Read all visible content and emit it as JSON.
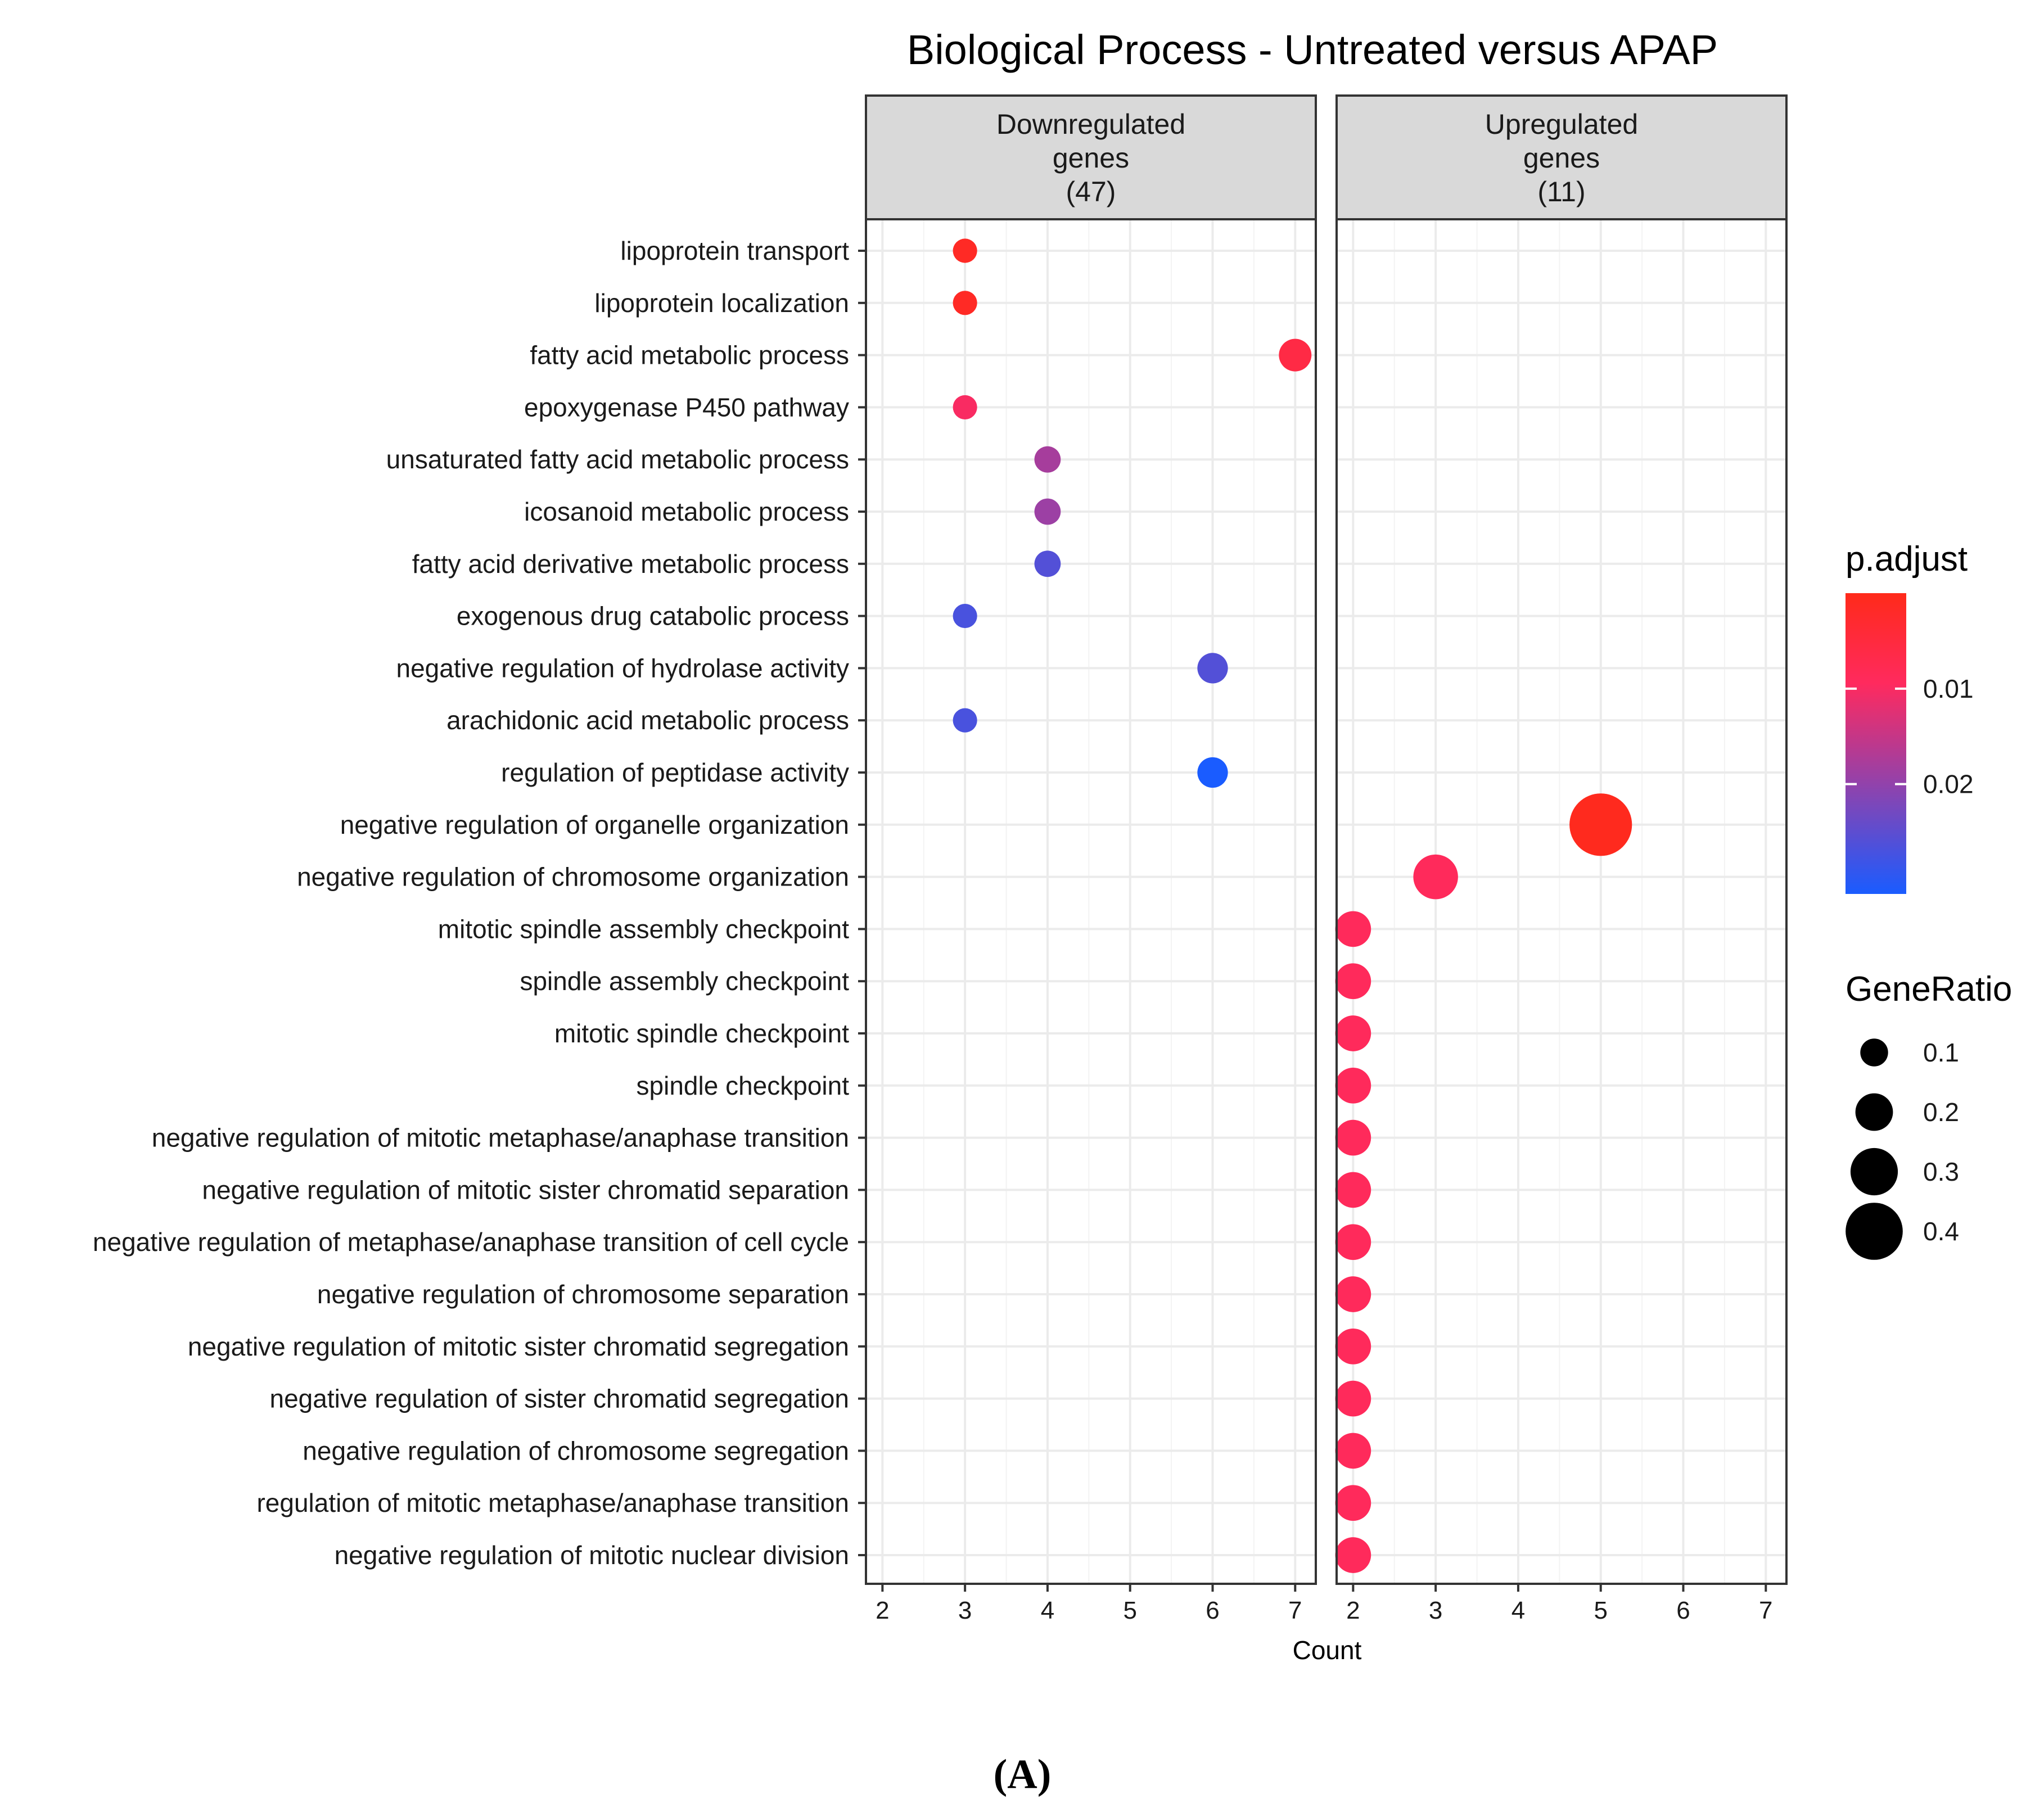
{
  "chart_data": {
    "type": "scatter",
    "title": "Biological Process - Untreated versus APAP",
    "xlabel": "Count",
    "caption": "(A)",
    "x_ticks": [
      2,
      3,
      4,
      5,
      6,
      7
    ],
    "xlim": [
      1.8,
      7.25
    ],
    "categories": [
      "lipoprotein transport",
      "lipoprotein localization",
      "fatty acid metabolic process",
      "epoxygenase P450 pathway",
      "unsaturated fatty acid metabolic process",
      "icosanoid metabolic process",
      "fatty acid derivative metabolic process",
      "exogenous drug catabolic process",
      "negative regulation of hydrolase activity",
      "arachidonic acid metabolic process",
      "regulation of peptidase activity",
      "negative regulation of organelle organization",
      "negative regulation of chromosome organization",
      "mitotic spindle assembly checkpoint",
      "spindle assembly checkpoint",
      "mitotic spindle checkpoint",
      "spindle checkpoint",
      "negative regulation of mitotic metaphase/anaphase transition",
      "negative regulation of mitotic sister chromatid separation",
      "negative regulation of metaphase/anaphase transition of cell cycle",
      "negative regulation of chromosome separation",
      "negative regulation of mitotic sister chromatid segregation",
      "negative regulation of sister chromatid segregation",
      "negative regulation of chromosome segregation",
      "regulation of mitotic metaphase/anaphase transition",
      "negative regulation of mitotic nuclear division"
    ],
    "panels": [
      {
        "label_lines": [
          "Downregulated",
          "genes",
          "(47)"
        ],
        "points": [
          {
            "term": "lipoprotein transport",
            "count": 3,
            "gene_ratio": 0.064,
            "p_adjust": 0.0015
          },
          {
            "term": "lipoprotein localization",
            "count": 3,
            "gene_ratio": 0.064,
            "p_adjust": 0.0015
          },
          {
            "term": "fatty acid metabolic process",
            "count": 7,
            "gene_ratio": 0.149,
            "p_adjust": 0.006
          },
          {
            "term": "epoxygenase P450 pathway",
            "count": 3,
            "gene_ratio": 0.064,
            "p_adjust": 0.01
          },
          {
            "term": "unsaturated fatty acid metabolic process",
            "count": 4,
            "gene_ratio": 0.085,
            "p_adjust": 0.018
          },
          {
            "term": "icosanoid metabolic process",
            "count": 4,
            "gene_ratio": 0.085,
            "p_adjust": 0.019
          },
          {
            "term": "fatty acid derivative metabolic process",
            "count": 4,
            "gene_ratio": 0.085,
            "p_adjust": 0.026
          },
          {
            "term": "exogenous drug catabolic process",
            "count": 3,
            "gene_ratio": 0.064,
            "p_adjust": 0.027
          },
          {
            "term": "negative regulation of hydrolase activity",
            "count": 6,
            "gene_ratio": 0.128,
            "p_adjust": 0.026
          },
          {
            "term": "arachidonic acid metabolic process",
            "count": 3,
            "gene_ratio": 0.064,
            "p_adjust": 0.027
          },
          {
            "term": "regulation of peptidase activity",
            "count": 6,
            "gene_ratio": 0.128,
            "p_adjust": 0.0315
          }
        ]
      },
      {
        "label_lines": [
          "Upregulated",
          "genes",
          "(11)"
        ],
        "points": [
          {
            "term": "negative regulation of organelle organization",
            "count": 5,
            "gene_ratio": 0.455,
            "p_adjust": 0.0005
          },
          {
            "term": "negative regulation of chromosome organization",
            "count": 3,
            "gene_ratio": 0.273,
            "p_adjust": 0.009
          },
          {
            "term": "mitotic spindle assembly checkpoint",
            "count": 2,
            "gene_ratio": 0.182,
            "p_adjust": 0.009
          },
          {
            "term": "spindle assembly checkpoint",
            "count": 2,
            "gene_ratio": 0.182,
            "p_adjust": 0.009
          },
          {
            "term": "mitotic spindle checkpoint",
            "count": 2,
            "gene_ratio": 0.182,
            "p_adjust": 0.009
          },
          {
            "term": "spindle checkpoint",
            "count": 2,
            "gene_ratio": 0.182,
            "p_adjust": 0.009
          },
          {
            "term": "negative regulation of mitotic metaphase/anaphase transition",
            "count": 2,
            "gene_ratio": 0.182,
            "p_adjust": 0.009
          },
          {
            "term": "negative regulation of mitotic sister chromatid separation",
            "count": 2,
            "gene_ratio": 0.182,
            "p_adjust": 0.009
          },
          {
            "term": "negative regulation of metaphase/anaphase transition of cell cycle",
            "count": 2,
            "gene_ratio": 0.182,
            "p_adjust": 0.009
          },
          {
            "term": "negative regulation of chromosome separation",
            "count": 2,
            "gene_ratio": 0.182,
            "p_adjust": 0.009
          },
          {
            "term": "negative regulation of mitotic sister chromatid segregation",
            "count": 2,
            "gene_ratio": 0.182,
            "p_adjust": 0.009
          },
          {
            "term": "negative regulation of sister chromatid segregation",
            "count": 2,
            "gene_ratio": 0.182,
            "p_adjust": 0.009
          },
          {
            "term": "negative regulation of chromosome segregation",
            "count": 2,
            "gene_ratio": 0.182,
            "p_adjust": 0.009
          },
          {
            "term": "regulation of mitotic metaphase/anaphase transition",
            "count": 2,
            "gene_ratio": 0.182,
            "p_adjust": 0.009
          },
          {
            "term": "negative regulation of mitotic nuclear division",
            "count": 2,
            "gene_ratio": 0.182,
            "p_adjust": 0.009
          }
        ]
      }
    ],
    "color_legend": {
      "title": "p.adjust",
      "range": [
        0,
        0.0315
      ],
      "ticks": [
        {
          "value": 0.01,
          "label": "0.01"
        },
        {
          "value": 0.02,
          "label": "0.02"
        }
      ],
      "low_color": "#ff2a1a",
      "mid_color": "#ff2a5e",
      "high_color": "#1a5cff"
    },
    "size_legend": {
      "title": "GeneRatio",
      "entries": [
        {
          "value": 0.1,
          "label": "0.1"
        },
        {
          "value": 0.2,
          "label": "0.2"
        },
        {
          "value": 0.3,
          "label": "0.3"
        },
        {
          "value": 0.4,
          "label": "0.4"
        }
      ]
    },
    "colors": {
      "strip_fill": "#d9d9d9",
      "panel_border": "#333333",
      "grid": "#ebebeb"
    }
  }
}
